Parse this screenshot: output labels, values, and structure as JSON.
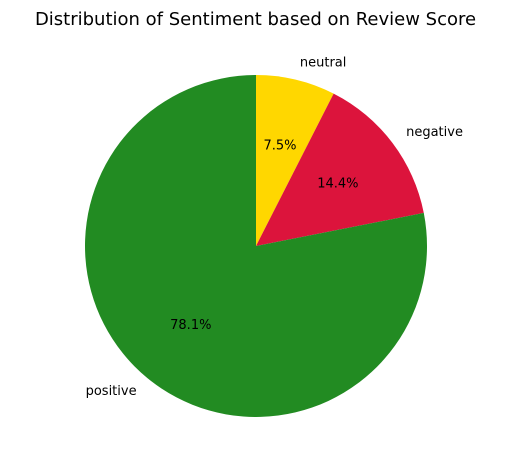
{
  "chart_data": {
    "type": "pie",
    "title": "Distribution of Sentiment based on Review Score",
    "categories": [
      "neutral",
      "negative",
      "positive"
    ],
    "values": [
      7.5,
      14.4,
      78.1
    ],
    "percent_labels": [
      "7.5%",
      "14.4%",
      "78.1%"
    ],
    "colors": [
      "#FFD700",
      "#DC143C",
      "#228B22"
    ],
    "start_angle_deg": 90,
    "direction": "clockwise",
    "legend": "none"
  }
}
